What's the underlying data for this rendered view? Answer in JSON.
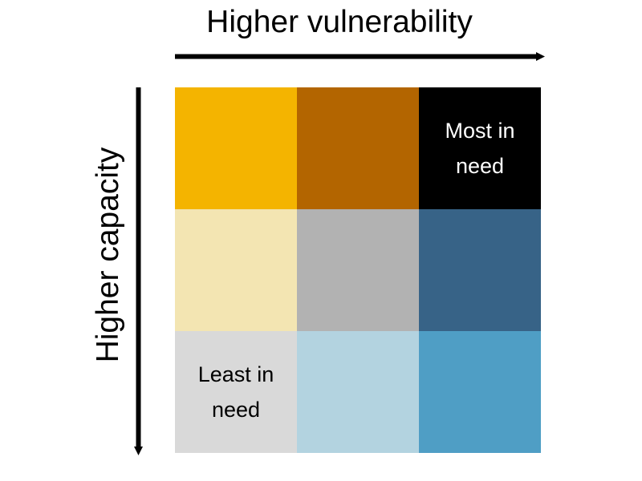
{
  "axes": {
    "x_label": "Higher vulnerability",
    "y_label": "Higher capacity"
  },
  "grid": {
    "rows": [
      [
        {
          "color": "#F4B400",
          "label": ""
        },
        {
          "color": "#B36500",
          "label": ""
        },
        {
          "color": "#000000",
          "label": "Most in need",
          "text_color": "#FFFFFF"
        }
      ],
      [
        {
          "color": "#F3E5B2",
          "label": ""
        },
        {
          "color": "#B2B2B2",
          "label": ""
        },
        {
          "color": "#376387",
          "label": ""
        }
      ],
      [
        {
          "color": "#D9D9D9",
          "label": "Least in need",
          "text_color": "#000000"
        },
        {
          "color": "#B3D3E0",
          "label": ""
        },
        {
          "color": "#4F9EC5",
          "label": ""
        }
      ]
    ]
  }
}
